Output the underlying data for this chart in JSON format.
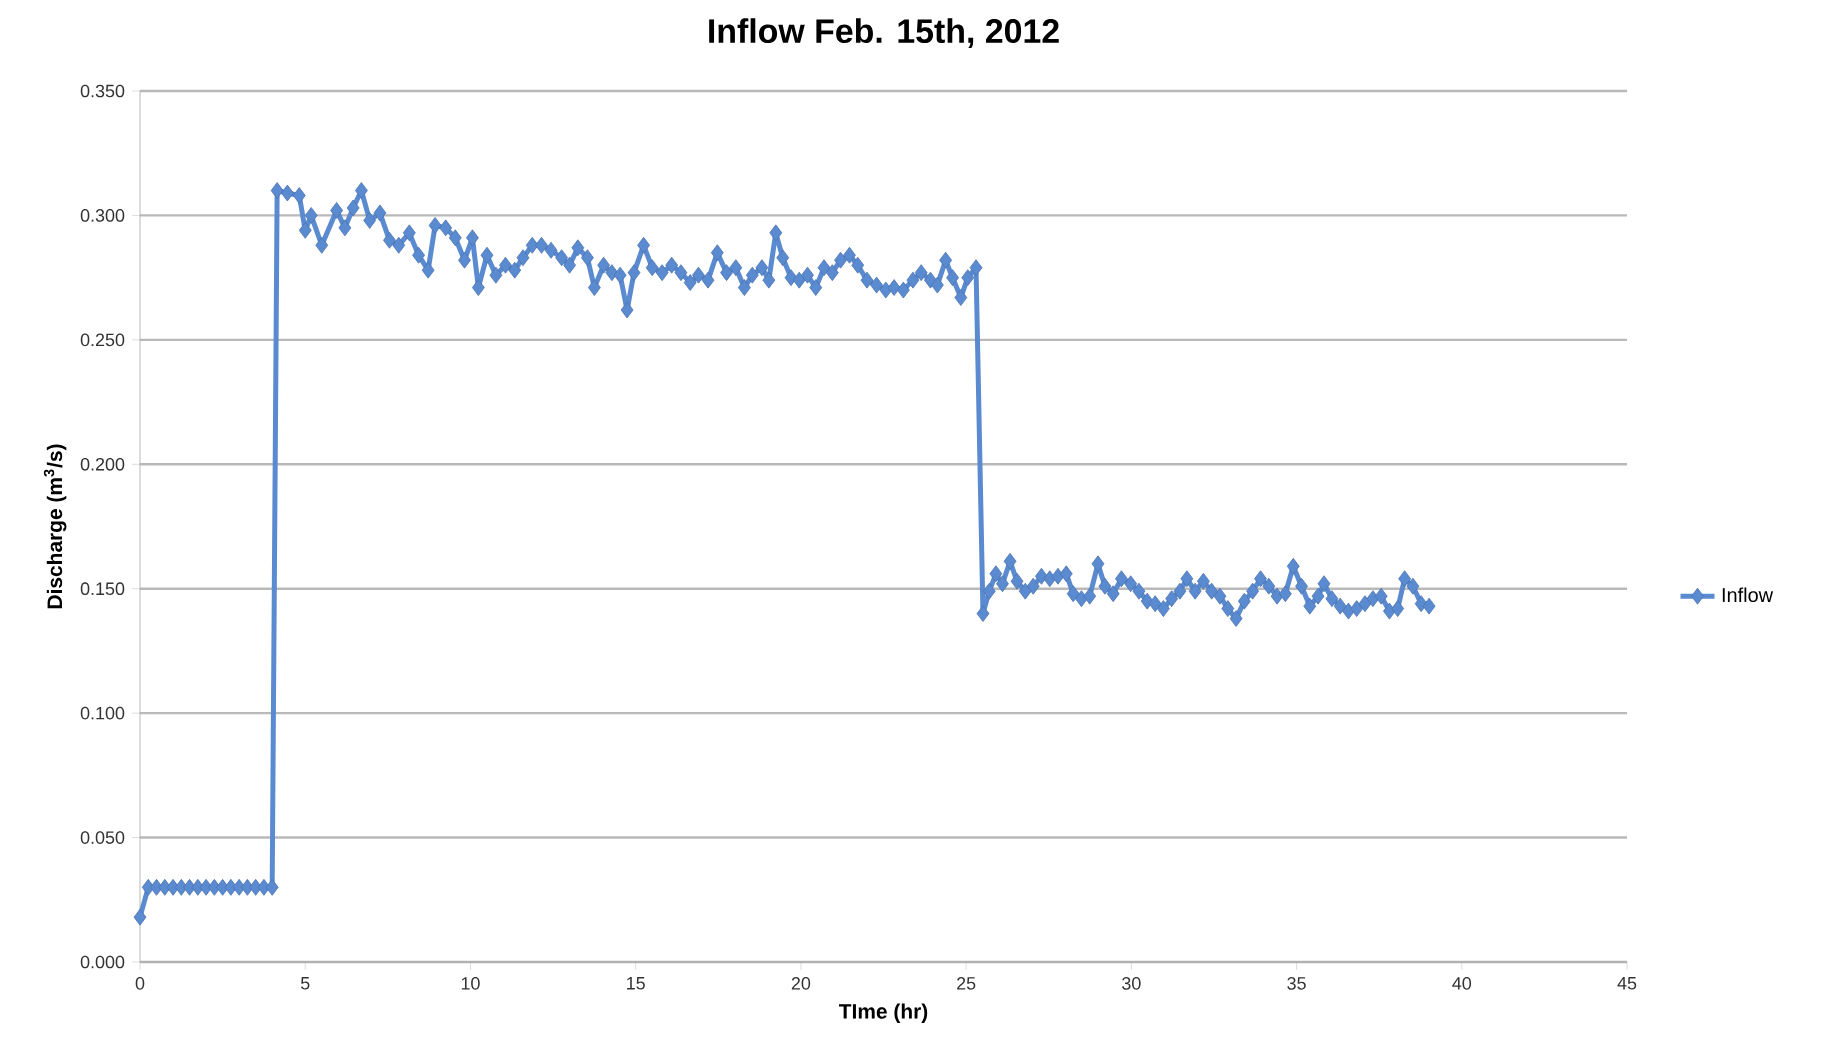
{
  "chart_data": {
    "type": "line",
    "title": "Inflow Feb. 15th, 2012",
    "xlabel": "TIme (hr)",
    "ylabel": "Discharge (m$^{3}$/s)",
    "x": [
      0,
      0.25,
      0.5,
      0.75,
      1,
      1.25,
      1.5,
      1.75,
      2,
      2.25,
      2.5,
      2.75,
      3,
      3.25,
      3.5,
      3.75,
      4,
      4.15,
      4.46,
      4.82,
      5.0,
      5.18,
      5.5,
      5.95,
      6.2,
      6.45,
      6.7,
      6.95,
      7.26,
      7.55,
      7.83,
      8.15,
      8.43,
      8.72,
      8.93,
      9.25,
      9.54,
      9.82,
      10.06,
      10.24,
      10.5,
      10.77,
      11.06,
      11.34,
      11.59,
      11.87,
      12.15,
      12.44,
      12.76,
      13.0,
      13.25,
      13.54,
      13.75,
      14.03,
      14.28,
      14.53,
      14.74,
      14.95,
      15.24,
      15.5,
      15.8,
      16.09,
      16.37,
      16.65,
      16.9,
      17.19,
      17.47,
      17.75,
      18.03,
      18.29,
      18.53,
      18.82,
      19.03,
      19.24,
      19.45,
      19.7,
      19.95,
      20.2,
      20.45,
      20.7,
      20.95,
      21.2,
      21.47,
      21.72,
      22.0,
      22.29,
      22.57,
      22.82,
      23.1,
      23.39,
      23.64,
      23.92,
      24.13,
      24.38,
      24.59,
      24.84,
      25.05,
      25.3,
      25.51,
      25.7,
      25.9,
      26.1,
      26.33,
      26.54,
      26.79,
      27.03,
      27.28,
      27.53,
      27.78,
      28.03,
      28.24,
      28.49,
      28.74,
      28.99,
      29.2,
      29.45,
      29.7,
      29.98,
      30.23,
      30.48,
      30.72,
      30.97,
      31.22,
      31.47,
      31.68,
      31.93,
      32.18,
      32.43,
      32.68,
      32.92,
      33.17,
      33.42,
      33.67,
      33.91,
      34.16,
      34.41,
      34.66,
      34.9,
      35.15,
      35.4,
      35.65,
      35.83,
      36.07,
      36.32,
      36.57,
      36.82,
      37.07,
      37.31,
      37.56,
      37.81,
      38.06,
      38.27,
      38.52,
      38.77,
      39.01
    ],
    "series": [
      {
        "name": "Inflow",
        "color": "#5a8ad0",
        "values": [
          0.018,
          0.03,
          0.03,
          0.03,
          0.03,
          0.03,
          0.03,
          0.03,
          0.03,
          0.03,
          0.03,
          0.03,
          0.03,
          0.03,
          0.03,
          0.03,
          0.03,
          0.31,
          0.309,
          0.308,
          0.294,
          0.3,
          0.288,
          0.302,
          0.295,
          0.303,
          0.31,
          0.298,
          0.301,
          0.29,
          0.288,
          0.293,
          0.284,
          0.278,
          0.296,
          0.295,
          0.291,
          0.282,
          0.291,
          0.271,
          0.284,
          0.276,
          0.28,
          0.278,
          0.283,
          0.288,
          0.288,
          0.286,
          0.283,
          0.28,
          0.287,
          0.283,
          0.271,
          0.28,
          0.277,
          0.276,
          0.262,
          0.277,
          0.288,
          0.279,
          0.277,
          0.28,
          0.277,
          0.273,
          0.276,
          0.274,
          0.285,
          0.277,
          0.279,
          0.271,
          0.276,
          0.279,
          0.274,
          0.293,
          0.283,
          0.275,
          0.274,
          0.276,
          0.271,
          0.279,
          0.277,
          0.282,
          0.284,
          0.28,
          0.274,
          0.272,
          0.27,
          0.271,
          0.27,
          0.274,
          0.277,
          0.274,
          0.272,
          0.282,
          0.275,
          0.267,
          0.275,
          0.279,
          0.14,
          0.149,
          0.156,
          0.152,
          0.161,
          0.153,
          0.149,
          0.151,
          0.155,
          0.154,
          0.155,
          0.156,
          0.148,
          0.146,
          0.147,
          0.16,
          0.151,
          0.148,
          0.154,
          0.152,
          0.149,
          0.145,
          0.144,
          0.142,
          0.146,
          0.149,
          0.154,
          0.149,
          0.153,
          0.149,
          0.147,
          0.142,
          0.138,
          0.145,
          0.149,
          0.154,
          0.151,
          0.147,
          0.148,
          0.159,
          0.151,
          0.143,
          0.147,
          0.152,
          0.146,
          0.143,
          0.141,
          0.142,
          0.144,
          0.146,
          0.147,
          0.141,
          0.142,
          0.154,
          0.151,
          0.144,
          0.143
        ]
      }
    ],
    "xlim": [
      0,
      45
    ],
    "xticks": [
      0,
      5,
      10,
      15,
      20,
      25,
      30,
      35,
      40,
      45
    ],
    "ylim": [
      0,
      0.35
    ],
    "yticks": [
      {
        "value": 0,
        "label": "0.000"
      },
      {
        "value": 0.05,
        "label": "0.050"
      },
      {
        "value": 0.1,
        "label": "0.100"
      },
      {
        "value": 0.15,
        "label": "0.150"
      },
      {
        "value": 0.2,
        "label": "0.200"
      },
      {
        "value": 0.25,
        "label": "0.250"
      },
      {
        "value": 0.3,
        "label": "0.300"
      },
      {
        "value": 0.35,
        "label": "0.350"
      }
    ],
    "grid": "y",
    "legend": "right",
    "marker": "diamond",
    "line_style": "solid"
  }
}
